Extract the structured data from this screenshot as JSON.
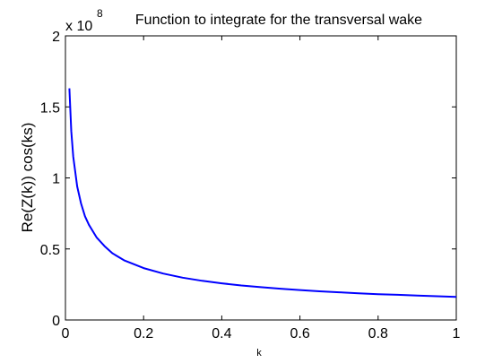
{
  "chart_data": {
    "type": "line",
    "title": "Function to integrate for the transversal wake",
    "xlabel": "k",
    "ylabel": "Re(Z(k)) cos(ks)",
    "xlim": [
      0,
      1
    ],
    "ylim": [
      0,
      2
    ],
    "y_exponent_label": "x 10",
    "y_exponent_power": "8",
    "grid": false,
    "x_ticks": [
      0,
      0.2,
      0.4,
      0.6,
      0.8,
      1
    ],
    "x_tick_labels": [
      "0",
      "0.2",
      "0.4",
      "0.6",
      "0.8",
      "1"
    ],
    "y_ticks": [
      0,
      0.5,
      1,
      1.5,
      2
    ],
    "y_tick_labels": [
      "0",
      "0.5",
      "1",
      "1.5",
      "2"
    ],
    "series": [
      {
        "color": "#0000ff",
        "x": [
          0.01,
          0.015,
          0.02,
          0.03,
          0.04,
          0.05,
          0.06,
          0.08,
          0.1,
          0.12,
          0.15,
          0.2,
          0.25,
          0.3,
          0.35,
          0.4,
          0.45,
          0.5,
          0.55,
          0.6,
          0.65,
          0.7,
          0.75,
          0.8,
          0.85,
          0.9,
          0.95,
          1.0
        ],
        "y": [
          1.63,
          1.33,
          1.15,
          0.94,
          0.82,
          0.73,
          0.67,
          0.58,
          0.52,
          0.47,
          0.42,
          0.365,
          0.327,
          0.298,
          0.276,
          0.258,
          0.243,
          0.231,
          0.22,
          0.211,
          0.202,
          0.195,
          0.188,
          0.182,
          0.177,
          0.172,
          0.167,
          0.163
        ]
      }
    ]
  }
}
